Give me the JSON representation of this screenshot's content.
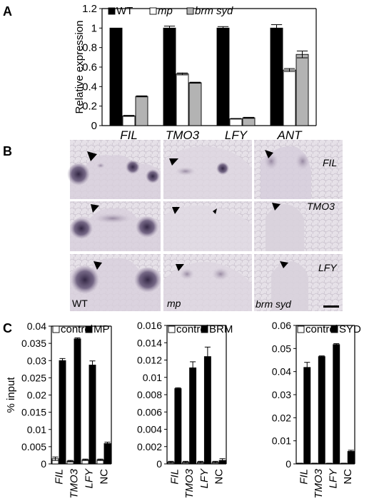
{
  "panels": {
    "a": {
      "letter": "A"
    },
    "b": {
      "letter": "B",
      "row_labels": [
        "FIL",
        "TMO3",
        "LFY"
      ],
      "column_labels": [
        "WT",
        "mp",
        "brm syd"
      ]
    },
    "c": {
      "letter": "C"
    }
  },
  "chart_data": [
    {
      "id": "A",
      "type": "bar",
      "ylabel": "Relative expression",
      "ylim": [
        0,
        1.2
      ],
      "yticks": [
        "0",
        "0.2",
        "0.4",
        "0.6",
        "0.8",
        "1",
        "1.2"
      ],
      "categories": [
        "FIL",
        "TMO3",
        "LFY",
        "ANT"
      ],
      "series": [
        {
          "name": "WT",
          "color": "#000000",
          "values": [
            1.0,
            1.0,
            1.0,
            1.0
          ],
          "errors": [
            0.0,
            0.02,
            0.015,
            0.035
          ]
        },
        {
          "name": "mp",
          "color": "#ffffff",
          "values": [
            0.1,
            0.53,
            0.07,
            0.57
          ],
          "errors": [
            0.005,
            0.01,
            0.003,
            0.015
          ]
        },
        {
          "name": "brm syd",
          "color": "#b3b3b3",
          "values": [
            0.3,
            0.44,
            0.08,
            0.73
          ],
          "errors": [
            0.005,
            0.005,
            0.005,
            0.035
          ]
        }
      ],
      "legend_position": "top"
    },
    {
      "id": "C1",
      "type": "bar",
      "ylabel": "% input",
      "ylim": [
        0,
        0.04
      ],
      "yticks": [
        "0",
        "0.005",
        "0.01",
        "0.015",
        "0.02",
        "0.025",
        "0.03",
        "0.035",
        "0.04"
      ],
      "categories": [
        "FIL",
        "TMO3",
        "LFY",
        "NC"
      ],
      "series": [
        {
          "name": "control",
          "color": "#ffffff",
          "values": [
            0.0015,
            0.0008,
            0.0012,
            0.0012
          ],
          "errors": [
            0.0005,
            0.0002,
            0.0002,
            0.0002
          ]
        },
        {
          "name": "MP",
          "color": "#000000",
          "values": [
            0.03,
            0.0363,
            0.0287,
            0.0059
          ],
          "errors": [
            0.0006,
            0.0003,
            0.0012,
            0.0004
          ]
        }
      ],
      "legend_position": "top"
    },
    {
      "id": "C2",
      "type": "bar",
      "ylim": [
        0,
        0.016
      ],
      "yticks": [
        "0",
        "0.002",
        "0.004",
        "0.006",
        "0.008",
        "0.01",
        "0.012",
        "0.014",
        "0.016"
      ],
      "categories": [
        "FIL",
        "TMO3",
        "LFY",
        "NC"
      ],
      "series": [
        {
          "name": "control",
          "color": "#ffffff",
          "values": [
            0.0002,
            0.0002,
            0.0002,
            0.0002
          ],
          "errors": [
            0.0001,
            0.0001,
            0.0001,
            0.0001
          ]
        },
        {
          "name": "BRM",
          "color": "#000000",
          "values": [
            0.0087,
            0.0111,
            0.0124,
            0.0004
          ],
          "errors": [
            0.0001,
            0.0007,
            0.0011,
            0.0002
          ]
        }
      ],
      "legend_position": "top"
    },
    {
      "id": "C3",
      "type": "bar",
      "ylim": [
        0,
        0.06
      ],
      "yticks": [
        "0",
        "0.01",
        "0.02",
        "0.03",
        "0.04",
        "0.05",
        "0.06"
      ],
      "categories": [
        "FIL",
        "TMO3",
        "LFY",
        "NC"
      ],
      "series": [
        {
          "name": "control",
          "color": "#ffffff",
          "values": [
            0.0002,
            0.0002,
            0.0002,
            0.0002
          ],
          "errors": [
            0.0001,
            0.0001,
            0.0001,
            0.0001
          ]
        },
        {
          "name": "SYD",
          "color": "#000000",
          "values": [
            0.0418,
            0.0465,
            0.0517,
            0.0054
          ],
          "errors": [
            0.0022,
            0.0003,
            0.0004,
            0.0005
          ]
        }
      ],
      "legend_position": "top"
    }
  ]
}
